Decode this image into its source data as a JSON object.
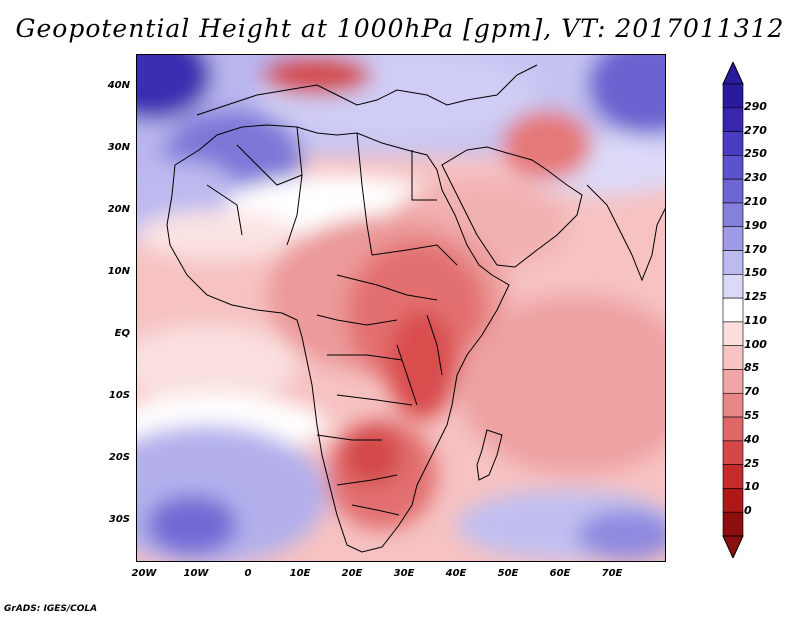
{
  "title": "Geopotential Height at 1000hPa [gpm], VT: 2017011312",
  "footer": "GrADS: IGES/COLA",
  "axes": {
    "lat_labels": [
      "40N",
      "30N",
      "20N",
      "10N",
      "EQ",
      "10S",
      "20S",
      "30S"
    ],
    "lon_labels": [
      "20W",
      "10W",
      "0",
      "10E",
      "20E",
      "30E",
      "40E",
      "50E",
      "60E",
      "70E"
    ]
  },
  "colorbar": {
    "levels": [
      "290",
      "270",
      "250",
      "230",
      "210",
      "190",
      "170",
      "150",
      "125",
      "110",
      "100",
      "85",
      "70",
      "55",
      "40",
      "25",
      "10",
      "0"
    ],
    "colors": [
      "#2a1b9a",
      "#3826ad",
      "#4a3cc0",
      "#5c52cc",
      "#6e66d4",
      "#8580dc",
      "#9f9be6",
      "#bcbaef",
      "#dadaf8",
      "#ffffff",
      "#fcdede",
      "#f7c4c4",
      "#f0a6a6",
      "#e88787",
      "#df6767",
      "#d44848",
      "#c42c2c",
      "#ae1818",
      "#8c0e0e"
    ]
  }
}
